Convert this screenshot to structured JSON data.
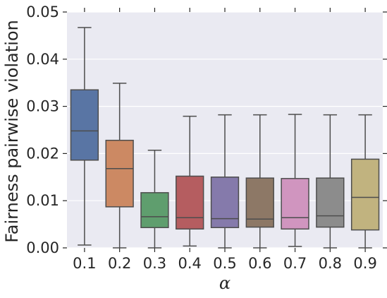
{
  "chart_data": {
    "type": "box",
    "title": "",
    "xlabel": "α",
    "ylabel": "Fairness pairwise violation",
    "ylim": [
      0,
      0.05
    ],
    "yticks": [
      "0.00",
      "0.01",
      "0.02",
      "0.03",
      "0.04",
      "0.05"
    ],
    "grid": true,
    "categories": [
      "0.1",
      "0.2",
      "0.3",
      "0.4",
      "0.5",
      "0.6",
      "0.7",
      "0.8",
      "0.9"
    ],
    "boxes": [
      {
        "category": "0.1",
        "whisker_low": 0.0006,
        "q1": 0.0186,
        "median": 0.0248,
        "q3": 0.0335,
        "whisker_high": 0.0467,
        "color": "#5975a4"
      },
      {
        "category": "0.2",
        "whisker_low": 0.0,
        "q1": 0.0087,
        "median": 0.0168,
        "q3": 0.0228,
        "whisker_high": 0.0349,
        "color": "#cc8963"
      },
      {
        "category": "0.3",
        "whisker_low": 0.0,
        "q1": 0.0043,
        "median": 0.0066,
        "q3": 0.0117,
        "whisker_high": 0.0207,
        "color": "#5f9e6e"
      },
      {
        "category": "0.4",
        "whisker_low": 0.0004,
        "q1": 0.004,
        "median": 0.0064,
        "q3": 0.0152,
        "whisker_high": 0.0279,
        "color": "#b55d60"
      },
      {
        "category": "0.5",
        "whisker_low": 0.0,
        "q1": 0.0043,
        "median": 0.0062,
        "q3": 0.015,
        "whisker_high": 0.0282,
        "color": "#857aab"
      },
      {
        "category": "0.6",
        "whisker_low": 0.0,
        "q1": 0.0044,
        "median": 0.0061,
        "q3": 0.0148,
        "whisker_high": 0.0282,
        "color": "#8d7866"
      },
      {
        "category": "0.7",
        "whisker_low": 0.0003,
        "q1": 0.004,
        "median": 0.0064,
        "q3": 0.0147,
        "whisker_high": 0.0283,
        "color": "#d095bf"
      },
      {
        "category": "0.8",
        "whisker_low": 0.0,
        "q1": 0.0044,
        "median": 0.0068,
        "q3": 0.0148,
        "whisker_high": 0.0282,
        "color": "#8c8c8c"
      },
      {
        "category": "0.9",
        "whisker_low": 0.0,
        "q1": 0.0038,
        "median": 0.0107,
        "q3": 0.0188,
        "whisker_high": 0.0282,
        "color": "#c1b37f"
      }
    ],
    "colors": {
      "background": "#eaeaf2",
      "grid": "#ffffff",
      "lines": "#4d4d4d"
    }
  }
}
